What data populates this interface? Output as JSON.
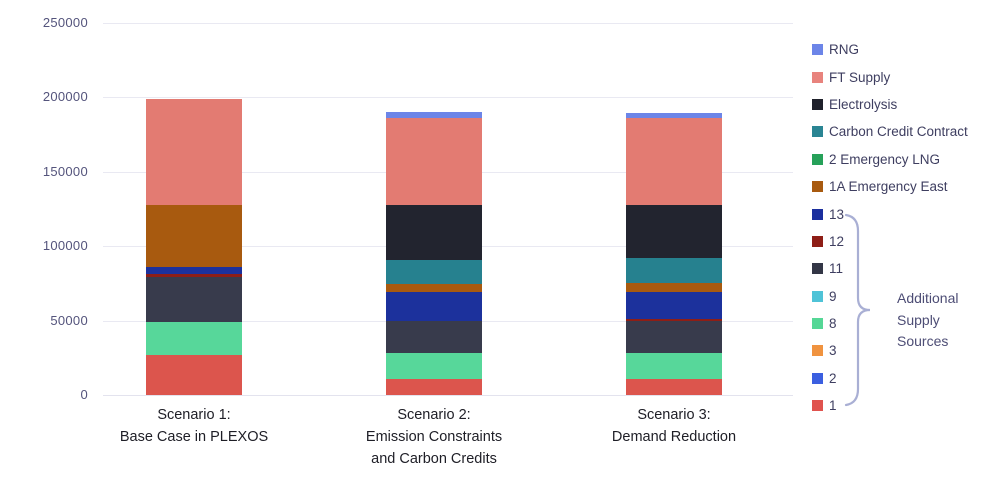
{
  "chart_data": {
    "type": "bar",
    "stacked": true,
    "title": "",
    "grid": true,
    "legend_position": "right",
    "categories": [
      {
        "lines": [
          "Scenario 1:",
          "Base Case in PLEXOS"
        ]
      },
      {
        "lines": [
          "Scenario 2:",
          "Emission Constraints",
          "and Carbon Credits"
        ]
      },
      {
        "lines": [
          "Scenario 3:",
          "Demand Reduction"
        ]
      }
    ],
    "y_axis": {
      "min": 0,
      "max": 250000,
      "step": 50000,
      "tick_labels": [
        "0",
        "50000",
        "100000",
        "150000",
        "200000",
        "250000"
      ]
    },
    "series": [
      {
        "name": "1",
        "color": "#dc554d",
        "values": [
          27000,
          11000,
          11000
        ]
      },
      {
        "name": "2",
        "color": "#3b5fe0",
        "values": [
          0,
          0,
          0
        ]
      },
      {
        "name": "3",
        "color": "#f0933f",
        "values": [
          0,
          0,
          0
        ]
      },
      {
        "name": "8",
        "color": "#57d79a",
        "values": [
          22000,
          17000,
          17500
        ]
      },
      {
        "name": "9",
        "color": "#4fc3d7",
        "values": [
          0,
          0,
          0
        ]
      },
      {
        "name": "11",
        "color": "#383b4c",
        "values": [
          30000,
          22000,
          21000
        ]
      },
      {
        "name": "12",
        "color": "#8e1e16",
        "values": [
          2000,
          0,
          1500
        ]
      },
      {
        "name": "13",
        "color": "#1c319c",
        "values": [
          5000,
          19000,
          18500
        ]
      },
      {
        "name": "1A Emergency East",
        "color": "#a85a0f",
        "values": [
          42000,
          5500,
          5500
        ]
      },
      {
        "name": "2 Emergency LNG",
        "color": "#26a159",
        "values": [
          0,
          0,
          0
        ]
      },
      {
        "name": "Carbon Credit Contract",
        "color": "#26818f",
        "values": [
          0,
          16500,
          17000
        ]
      },
      {
        "name": "Electrolysis",
        "color": "#22242f",
        "values": [
          0,
          36500,
          36000
        ]
      },
      {
        "name": "FT Supply",
        "color": "#e37b72",
        "values": [
          71000,
          59000,
          58000
        ]
      },
      {
        "name": "RNG",
        "color": "#6c85e8",
        "values": [
          0,
          4000,
          3500
        ]
      }
    ],
    "legend_items": [
      {
        "label": "RNG",
        "color": "#6c85e8"
      },
      {
        "label": "FT Supply",
        "color": "#e8837d"
      },
      {
        "label": "Electrolysis",
        "color": "#1f212b"
      },
      {
        "label": "Carbon Credit Contract",
        "color": "#2a8593"
      },
      {
        "label": "2 Emergency LNG",
        "color": "#26a159"
      },
      {
        "label": "1A Emergency East",
        "color": "#a85a0f"
      },
      {
        "label": "13",
        "color": "#1b2f9e"
      },
      {
        "label": "12",
        "color": "#8e1e16"
      },
      {
        "label": "11",
        "color": "#333646"
      },
      {
        "label": "9",
        "color": "#4fc3d7"
      },
      {
        "label": "8",
        "color": "#55d796"
      },
      {
        "label": "3",
        "color": "#f0933f"
      },
      {
        "label": "2",
        "color": "#3b5fe0"
      },
      {
        "label": "1",
        "color": "#e0534e"
      }
    ],
    "annotation": {
      "label": "Additional Supply Sources",
      "applies_to_legend_items": [
        "13",
        "12",
        "11",
        "9",
        "8",
        "3",
        "2",
        "1"
      ]
    },
    "colors": {
      "gridline": "#e9e9f2",
      "axis_text": "#54547c",
      "category_text": "#1e1e26",
      "legend_text": "#3e3e60",
      "annotation_text": "#4d4d75",
      "brace": "#a9afd4"
    }
  }
}
